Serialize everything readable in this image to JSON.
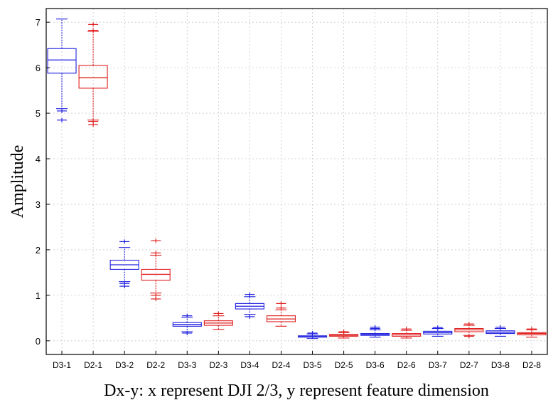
{
  "chart_data": {
    "type": "box",
    "title": "",
    "xlabel": "Dx-y: x represent DJI 2/3, y represent feature dimension",
    "ylabel": "Amplitude",
    "ylim": [
      -0.3,
      7.3
    ],
    "yticks": [
      0,
      1,
      2,
      3,
      4,
      5,
      6,
      7
    ],
    "grid": true,
    "categories": [
      "D3-1",
      "D2-1",
      "D3-2",
      "D2-2",
      "D3-3",
      "D2-3",
      "D3-4",
      "D2-4",
      "D3-5",
      "D2-5",
      "D3-6",
      "D2-6",
      "D3-7",
      "D2-7",
      "D3-8",
      "D2-8"
    ],
    "series_colors": {
      "D3": "#2020e0",
      "D2": "#e02020"
    },
    "boxes": [
      {
        "label": "D3-1",
        "group": "D3",
        "whisker_low": 5.1,
        "q1": 5.88,
        "median": 6.17,
        "q3": 6.42,
        "whisker_high": 7.07,
        "outliers_low": [
          4.85,
          5.05
        ],
        "outliers_high": []
      },
      {
        "label": "D2-1",
        "group": "D2",
        "whisker_low": 4.85,
        "q1": 5.55,
        "median": 5.78,
        "q3": 6.05,
        "whisker_high": 6.8,
        "outliers_low": [
          4.75,
          4.82
        ],
        "outliers_high": [
          6.82,
          6.95
        ]
      },
      {
        "label": "D3-2",
        "group": "D3",
        "whisker_low": 1.3,
        "q1": 1.57,
        "median": 1.67,
        "q3": 1.77,
        "whisker_high": 2.05,
        "outliers_low": [
          1.2,
          1.26
        ],
        "outliers_high": [
          2.18
        ]
      },
      {
        "label": "D2-2",
        "group": "D2",
        "whisker_low": 1.05,
        "q1": 1.33,
        "median": 1.46,
        "q3": 1.57,
        "whisker_high": 1.88,
        "outliers_low": [
          0.92,
          1.0
        ],
        "outliers_high": [
          1.93,
          2.2
        ]
      },
      {
        "label": "D3-3",
        "group": "D3",
        "whisker_low": 0.2,
        "q1": 0.32,
        "median": 0.36,
        "q3": 0.4,
        "whisker_high": 0.52,
        "outliers_low": [
          0.17
        ],
        "outliers_high": [
          0.55
        ]
      },
      {
        "label": "D2-3",
        "group": "D2",
        "whisker_low": 0.25,
        "q1": 0.34,
        "median": 0.39,
        "q3": 0.44,
        "whisker_high": 0.55,
        "outliers_low": [],
        "outliers_high": [
          0.6
        ]
      },
      {
        "label": "D3-4",
        "group": "D3",
        "whisker_low": 0.58,
        "q1": 0.7,
        "median": 0.76,
        "q3": 0.82,
        "whisker_high": 0.97,
        "outliers_low": [
          0.53
        ],
        "outliers_high": [
          1.02
        ]
      },
      {
        "label": "D2-4",
        "group": "D2",
        "whisker_low": 0.32,
        "q1": 0.42,
        "median": 0.48,
        "q3": 0.55,
        "whisker_high": 0.68,
        "outliers_low": [],
        "outliers_high": [
          0.72,
          0.82
        ]
      },
      {
        "label": "D3-5",
        "group": "D3",
        "whisker_low": 0.05,
        "q1": 0.08,
        "median": 0.09,
        "q3": 0.11,
        "whisker_high": 0.15,
        "outliers_low": [],
        "outliers_high": [
          0.17
        ]
      },
      {
        "label": "D2-5",
        "group": "D2",
        "whisker_low": 0.06,
        "q1": 0.1,
        "median": 0.12,
        "q3": 0.14,
        "whisker_high": 0.18,
        "outliers_low": [],
        "outliers_high": [
          0.2
        ]
      },
      {
        "label": "D3-6",
        "group": "D3",
        "whisker_low": 0.08,
        "q1": 0.12,
        "median": 0.14,
        "q3": 0.16,
        "whisker_high": 0.24,
        "outliers_low": [],
        "outliers_high": [
          0.27,
          0.3
        ]
      },
      {
        "label": "D2-6",
        "group": "D2",
        "whisker_low": 0.06,
        "q1": 0.1,
        "median": 0.13,
        "q3": 0.16,
        "whisker_high": 0.23,
        "outliers_low": [],
        "outliers_high": [
          0.26
        ]
      },
      {
        "label": "D3-7",
        "group": "D3",
        "whisker_low": 0.1,
        "q1": 0.15,
        "median": 0.18,
        "q3": 0.21,
        "whisker_high": 0.27,
        "outliers_low": [],
        "outliers_high": [
          0.29
        ]
      },
      {
        "label": "D2-7",
        "group": "D2",
        "whisker_low": 0.12,
        "q1": 0.2,
        "median": 0.24,
        "q3": 0.27,
        "whisker_high": 0.34,
        "outliers_low": [
          0.1
        ],
        "outliers_high": [
          0.37
        ]
      },
      {
        "label": "D3-8",
        "group": "D3",
        "whisker_low": 0.1,
        "q1": 0.16,
        "median": 0.19,
        "q3": 0.22,
        "whisker_high": 0.27,
        "outliers_low": [],
        "outliers_high": [
          0.3
        ]
      },
      {
        "label": "D2-8",
        "group": "D2",
        "whisker_low": 0.08,
        "q1": 0.13,
        "median": 0.16,
        "q3": 0.18,
        "whisker_high": 0.24,
        "outliers_low": [],
        "outliers_high": [
          0.26
        ]
      }
    ]
  }
}
